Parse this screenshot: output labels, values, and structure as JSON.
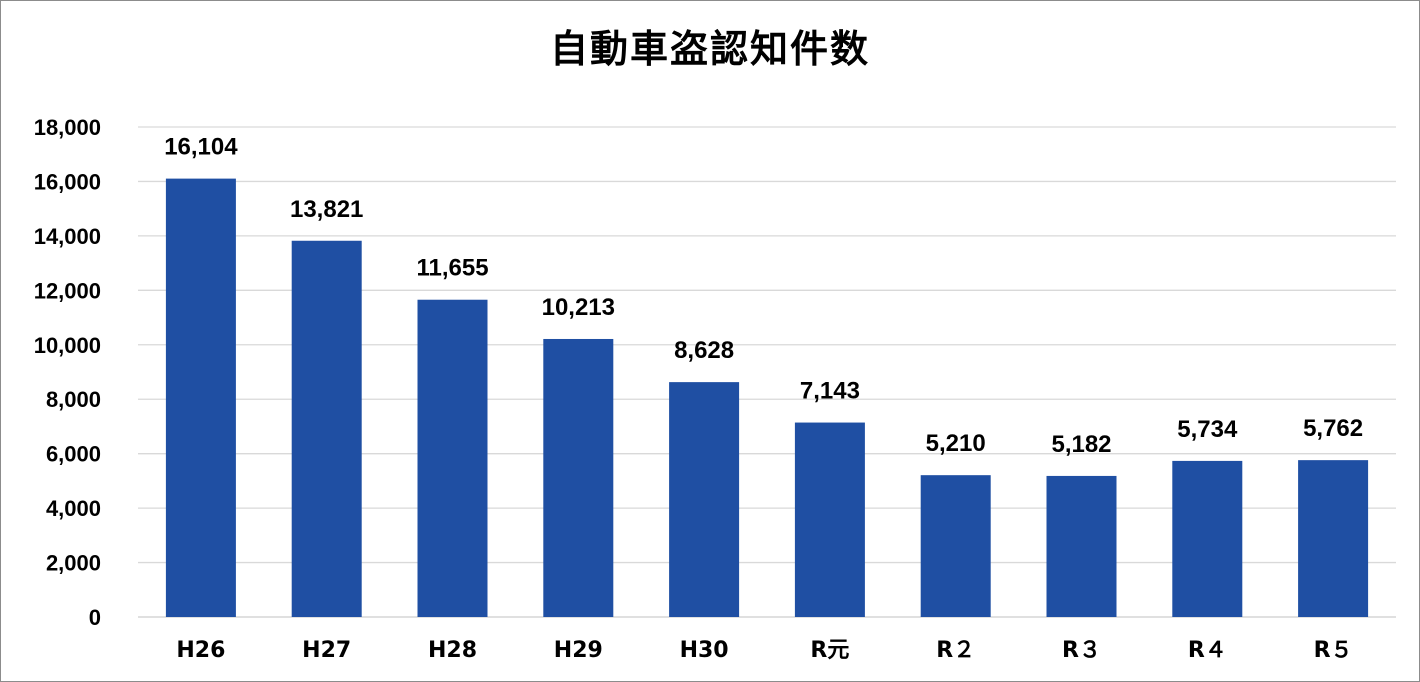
{
  "chart_data": {
    "type": "bar",
    "title": "自動車盗認知件数",
    "categories": [
      "H26",
      "H27",
      "H28",
      "H29",
      "H30",
      "R元",
      "R2",
      "R3",
      "R4",
      "R5"
    ],
    "category_labels": [
      "H26",
      "H27",
      "H28",
      "H29",
      "H30",
      "R元",
      "R２",
      "R３",
      "R４",
      "R５"
    ],
    "values": [
      16104,
      13821,
      11655,
      10213,
      8628,
      7143,
      5210,
      5182,
      5734,
      5762
    ],
    "value_labels": [
      "16,104",
      "13,821",
      "11,655",
      "10,213",
      "8,628",
      "7,143",
      "5,210",
      "5,182",
      "5,734",
      "5,762"
    ],
    "ylim": [
      0,
      18000
    ],
    "yticks": [
      0,
      2000,
      4000,
      6000,
      8000,
      10000,
      12000,
      14000,
      16000,
      18000
    ],
    "ytick_labels": [
      "0",
      "2,000",
      "4,000",
      "6,000",
      "8,000",
      "10,000",
      "12,000",
      "14,000",
      "16,000",
      "18,000"
    ],
    "xlabel": "",
    "ylabel": "",
    "grid": true,
    "legend": "none",
    "bar_color": "#1f4fa3",
    "grid_color": "#d9d9d9"
  }
}
